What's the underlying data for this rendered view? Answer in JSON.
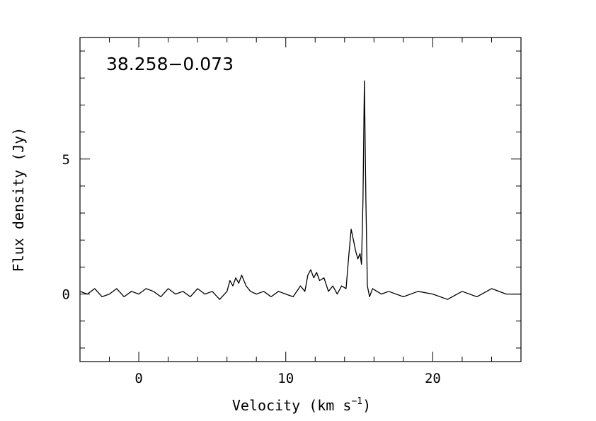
{
  "chart_data": {
    "type": "line",
    "title": "38.258−0.073",
    "xlabel": "Velocity (km s",
    "xlabel_superscript": "−1",
    "xlabel_suffix": ")",
    "ylabel": "Flux density (Jy)",
    "xlim": [
      -4.0,
      26.0
    ],
    "ylim": [
      -2.5,
      9.5
    ],
    "x_ticks_major": [
      0,
      10,
      20
    ],
    "x_tick_labels": [
      "0",
      "10",
      "20"
    ],
    "y_ticks_major": [
      0,
      5
    ],
    "y_tick_labels": [
      "0",
      "5"
    ],
    "grid": false,
    "legend": "none",
    "series": [
      {
        "x": [
          -4.0,
          -3.5,
          -3.0,
          -2.5,
          -2.0,
          -1.5,
          -1.0,
          -0.5,
          0.0,
          0.5,
          1.0,
          1.5,
          2.0,
          2.5,
          3.0,
          3.5,
          4.0,
          4.5,
          5.0,
          5.5,
          6.0,
          6.2,
          6.4,
          6.6,
          6.8,
          7.0,
          7.3,
          7.6,
          8.0,
          8.5,
          9.0,
          9.5,
          10.0,
          10.5,
          11.0,
          11.3,
          11.5,
          11.7,
          11.9,
          12.1,
          12.3,
          12.6,
          12.9,
          13.2,
          13.5,
          13.8,
          14.1,
          14.3,
          14.45,
          14.6,
          14.75,
          14.9,
          15.05,
          15.15,
          15.25,
          15.35,
          15.45,
          15.55,
          15.7,
          15.9,
          16.5,
          17.0,
          18.0,
          19.0,
          20.0,
          21.0,
          22.0,
          23.0,
          24.0,
          25.0,
          26.0
        ],
        "y": [
          0.1,
          0.0,
          0.2,
          -0.1,
          0.0,
          0.2,
          -0.1,
          0.1,
          0.0,
          0.2,
          0.1,
          -0.1,
          0.2,
          0.0,
          0.1,
          -0.1,
          0.2,
          0.0,
          0.1,
          -0.2,
          0.1,
          0.5,
          0.3,
          0.6,
          0.4,
          0.7,
          0.3,
          0.1,
          0.0,
          0.1,
          -0.1,
          0.1,
          0.0,
          -0.1,
          0.3,
          0.1,
          0.7,
          0.9,
          0.6,
          0.8,
          0.5,
          0.6,
          0.1,
          0.3,
          0.0,
          0.3,
          0.2,
          1.5,
          2.4,
          2.0,
          1.6,
          1.3,
          1.5,
          1.1,
          3.5,
          7.9,
          3.5,
          0.3,
          -0.1,
          0.2,
          0.0,
          0.1,
          -0.1,
          0.1,
          0.0,
          -0.2,
          0.1,
          -0.1,
          0.2,
          0.0,
          0.0
        ]
      }
    ]
  }
}
